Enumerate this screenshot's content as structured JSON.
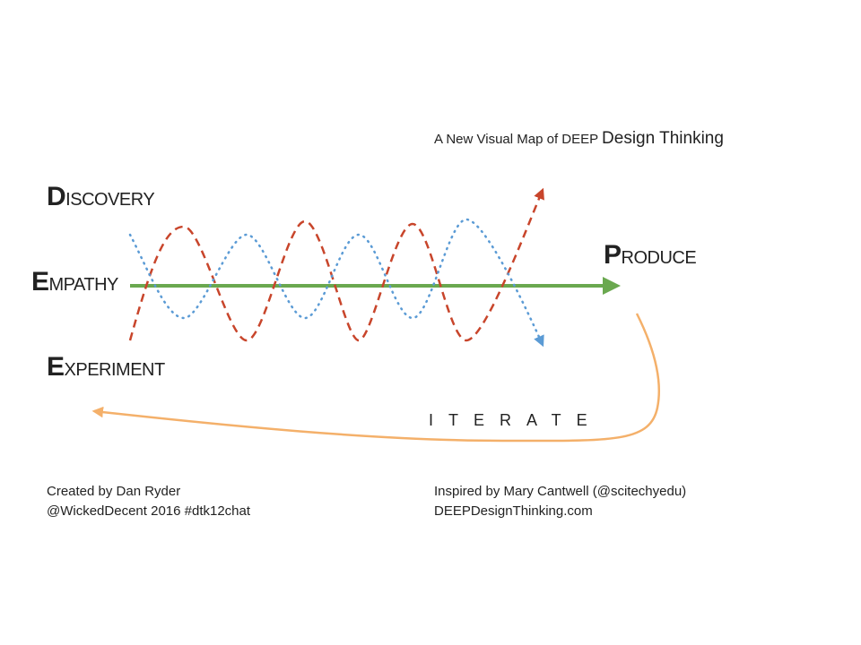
{
  "title": {
    "lead": "A New Visual Map of DEEP",
    "emphasis": "Design Thinking"
  },
  "labels": {
    "discovery": "DISCOVERY",
    "empathy": "EMPATHY",
    "experiment": "EXPERIMENT",
    "produce": "PRODUCE",
    "iterate": "ITERATE"
  },
  "credits": {
    "left": [
      "Created by Dan Ryder",
      "@WickedDecent 2016 #dtk12chat"
    ],
    "right": [
      "Inspired by Mary Cantwell (@scitechyedu)",
      "DEEPDesignThinking.com"
    ]
  }
}
